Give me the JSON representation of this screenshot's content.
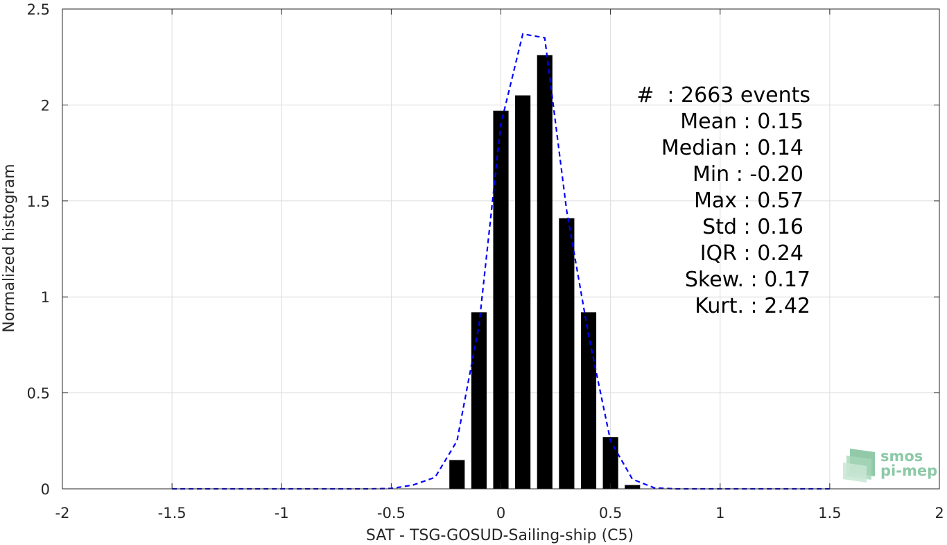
{
  "chart_data": {
    "type": "bar",
    "xlabel": "SAT - TSG-GOSUD-Sailing-ship (C5)",
    "ylabel": "Normalized histogram",
    "xlim": [
      -2,
      2
    ],
    "ylim": [
      0,
      2.5
    ],
    "xticks": [
      -2,
      -1.5,
      -1,
      -0.5,
      0,
      0.5,
      1,
      1.5,
      2
    ],
    "xtick_labels": [
      "-2",
      "-1.5",
      "-1",
      "-0.5",
      "0",
      "0.5",
      "1",
      "1.5",
      "2"
    ],
    "yticks": [
      0,
      0.5,
      1,
      1.5,
      2,
      2.5
    ],
    "ytick_labels": [
      "0",
      "0.5",
      "1",
      "1.5",
      "2",
      "2.5"
    ],
    "grid": true,
    "bar_color": "#000000",
    "bar_width": 0.07,
    "bars": {
      "x": [
        -0.2,
        -0.1,
        0.0,
        0.1,
        0.2,
        0.3,
        0.4,
        0.5,
        0.6
      ],
      "values": [
        0.15,
        0.92,
        1.97,
        2.05,
        2.26,
        1.41,
        0.92,
        0.27,
        0.02
      ]
    },
    "series": [
      {
        "type": "line",
        "style": "dashed",
        "color": "#0000ff",
        "x": [
          -1.5,
          -1.4,
          -1.3,
          -1.2,
          -1.1,
          -1.0,
          -0.9,
          -0.8,
          -0.7,
          -0.6,
          -0.5,
          -0.4,
          -0.3,
          -0.2,
          -0.1,
          0.0,
          0.1,
          0.2,
          0.3,
          0.4,
          0.5,
          0.6,
          0.7,
          0.8,
          0.9,
          1.0,
          1.1,
          1.2,
          1.3,
          1.4,
          1.5
        ],
        "values": [
          0,
          0,
          0,
          0,
          0,
          0,
          0,
          0,
          0,
          0,
          0.002,
          0.02,
          0.06,
          0.25,
          0.85,
          1.9,
          2.37,
          2.35,
          1.45,
          0.8,
          0.25,
          0.05,
          0.005,
          0,
          0,
          0,
          0,
          0,
          0,
          0,
          0
        ]
      }
    ],
    "annotations": [
      "#  : 2663 events",
      "Mean : 0.15",
      "Median : 0.14",
      "Min : -0.20",
      "Max : 0.57",
      "Std : 0.16",
      "IQR : 0.24",
      "Skew. : 0.17",
      "Kurt. : 2.42"
    ]
  },
  "logo": {
    "line1": "smos",
    "line2": "pi-mep"
  }
}
